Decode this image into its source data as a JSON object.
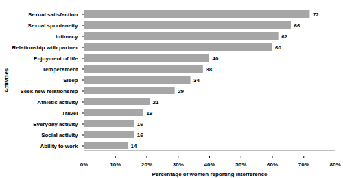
{
  "chart_data": {
    "type": "bar",
    "orientation": "horizontal",
    "xlabel": "Percentage of women reporting interference",
    "ylabel": "Activities",
    "categories": [
      "Sexual satisfaction",
      "Sexual spontaneity",
      "Intimacy",
      "Relationship with partner",
      "Enjoyment of life",
      "Temperament",
      "Sleep",
      "Seek new relationship",
      "Athletic activity",
      "Travel",
      "Everyday activity",
      "Social activity",
      "Ability to work"
    ],
    "values": [
      72,
      66,
      62,
      60,
      40,
      38,
      34,
      29,
      21,
      19,
      16,
      16,
      14
    ],
    "color": "#a6a6a6",
    "xlim": [
      0,
      80
    ],
    "xticks": [
      {
        "value": 0,
        "label": "0%"
      },
      {
        "value": 10,
        "label": "10%"
      },
      {
        "value": 20,
        "label": "20%"
      },
      {
        "value": 30,
        "label": "30%"
      },
      {
        "value": 40,
        "label": "40%"
      },
      {
        "value": 50,
        "label": "50%"
      },
      {
        "value": 60,
        "label": "60%"
      },
      {
        "value": 70,
        "label": "70%"
      },
      {
        "value": 80,
        "label": "80%"
      }
    ],
    "grid": false,
    "data_labels": true
  }
}
